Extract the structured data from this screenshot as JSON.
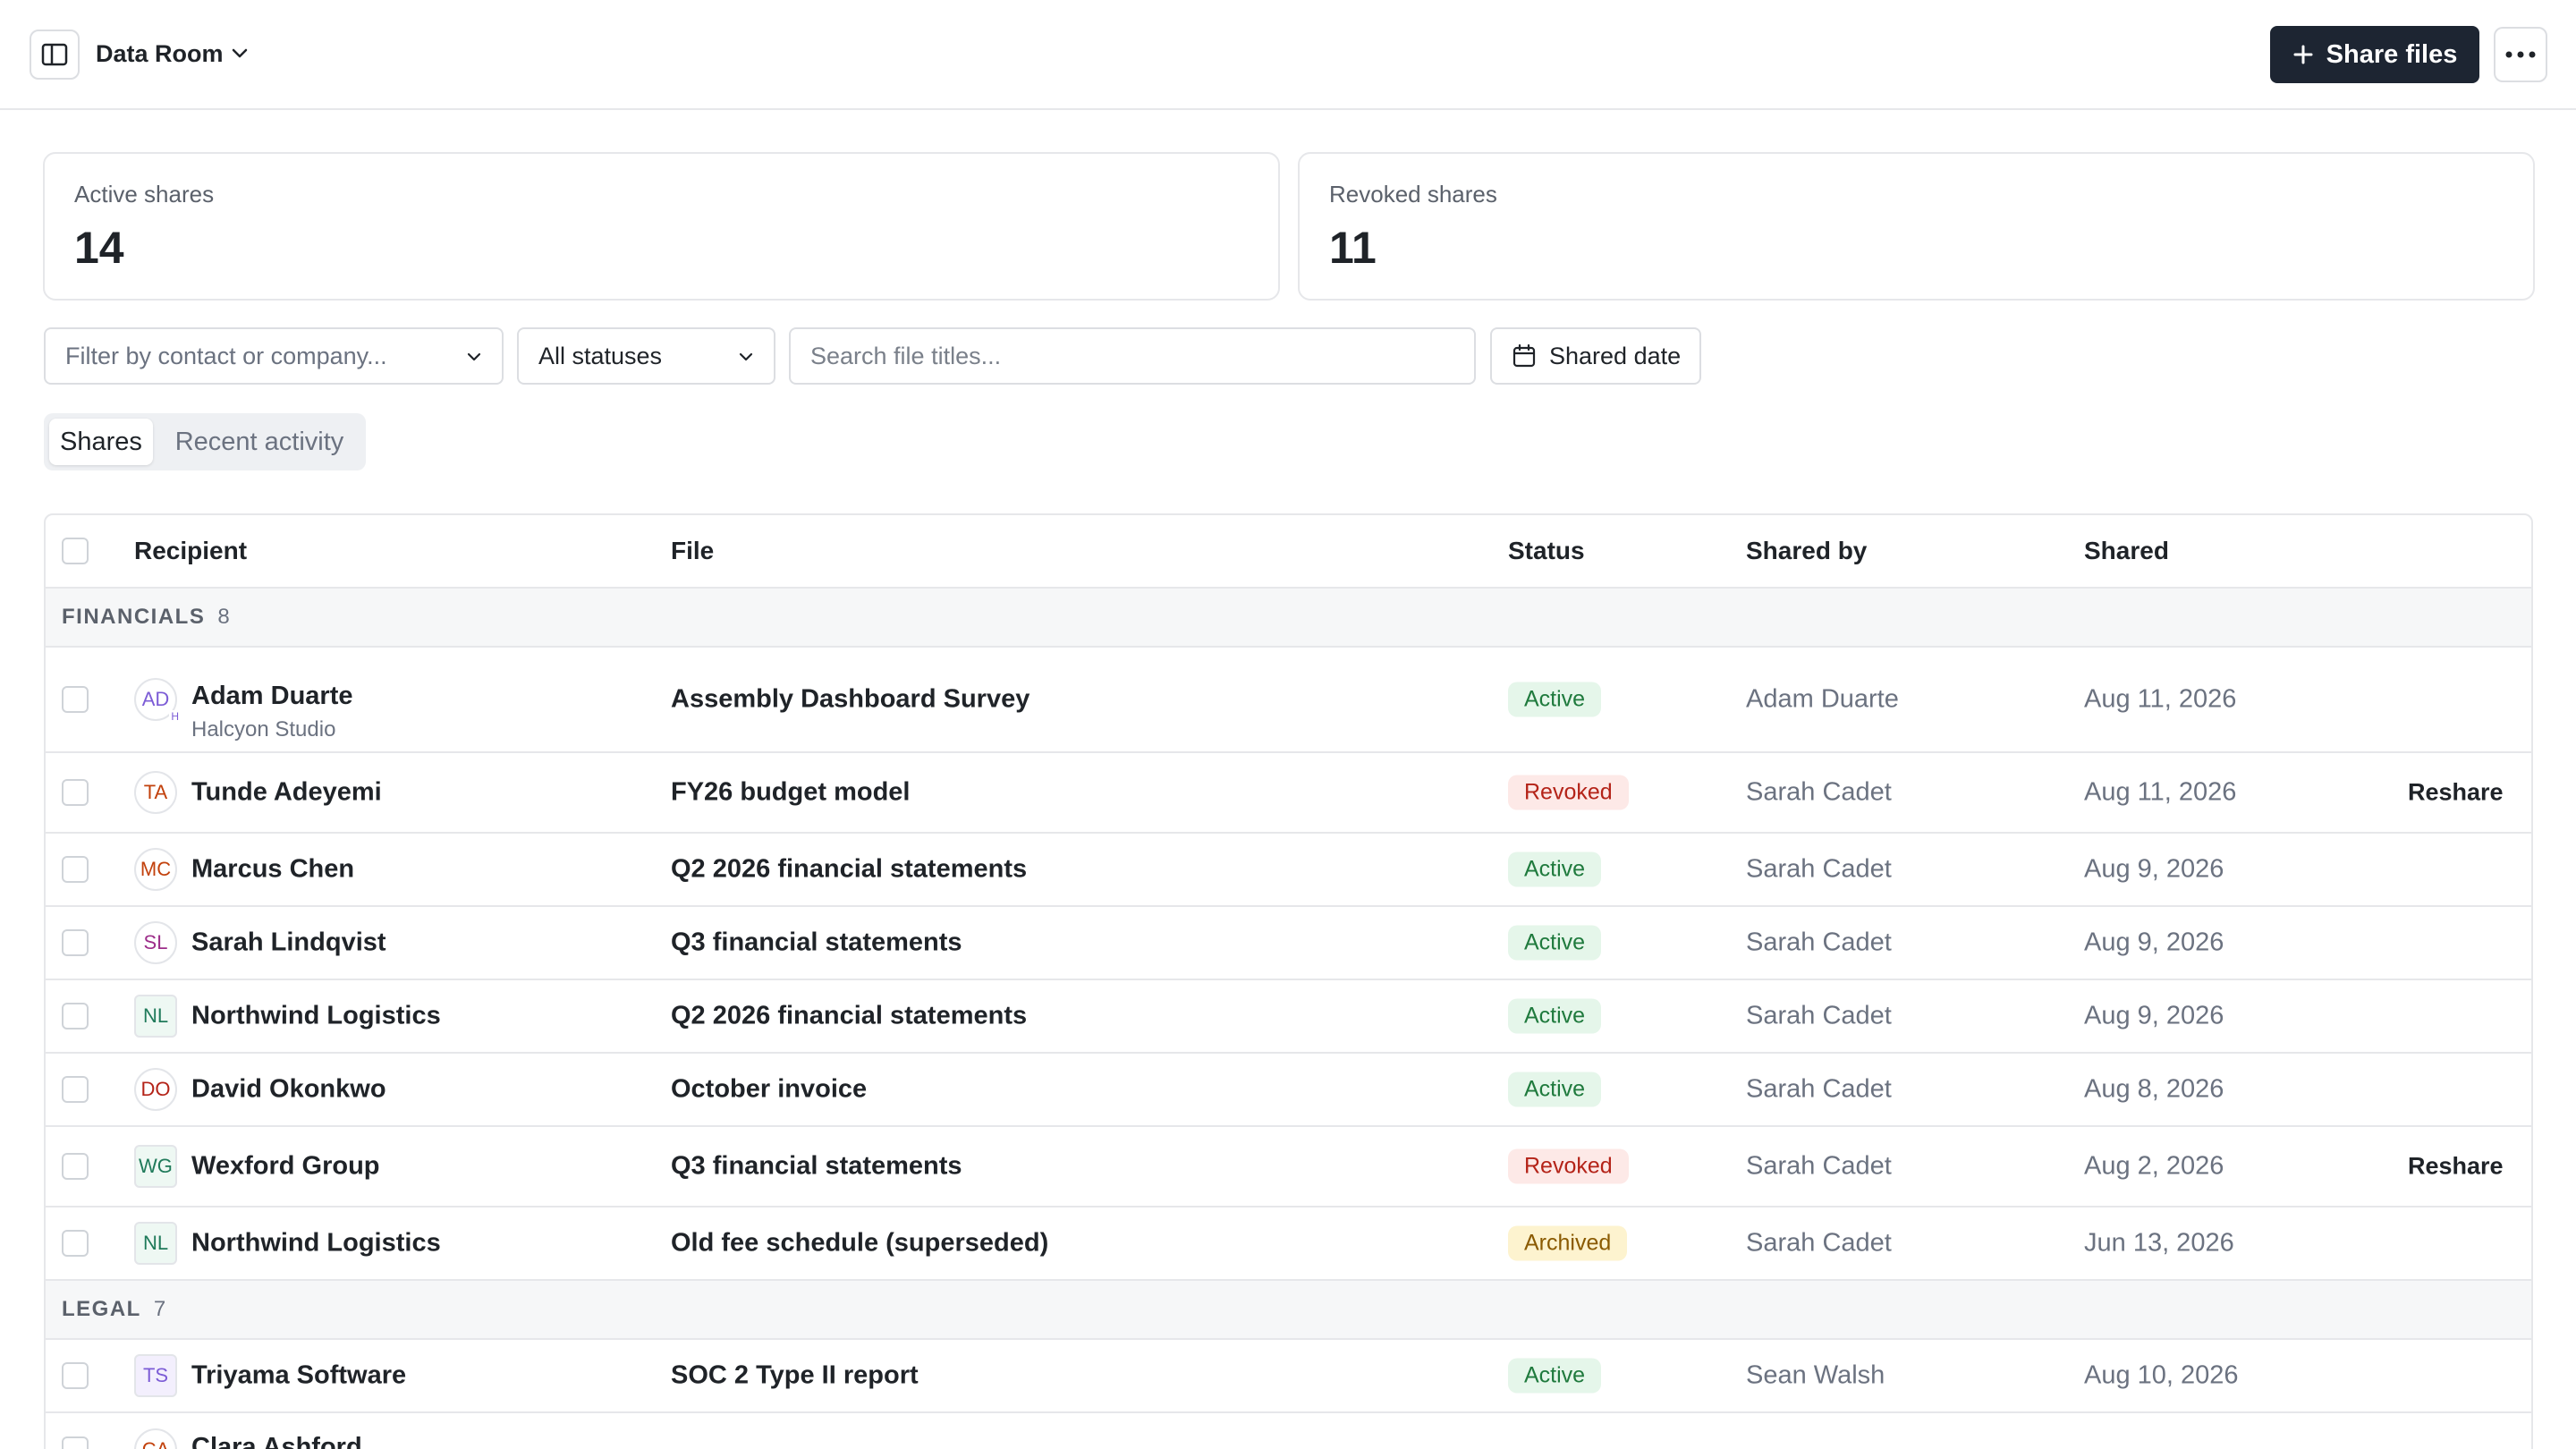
{
  "header": {
    "title": "Data Room",
    "share_button": "Share files"
  },
  "stats": [
    {
      "label": "Active shares",
      "value": "14"
    },
    {
      "label": "Revoked shares",
      "value": "11"
    }
  ],
  "filters": {
    "contact_placeholder": "Filter by contact or company...",
    "status_value": "All statuses",
    "search_placeholder": "Search file titles...",
    "date_label": "Shared date"
  },
  "tabs": [
    {
      "label": "Shares",
      "active": true
    },
    {
      "label": "Recent activity",
      "active": false
    }
  ],
  "table": {
    "columns": [
      "Recipient",
      "File",
      "Status",
      "Shared by",
      "Shared"
    ],
    "groups": [
      {
        "label": "FINANCIALS",
        "count": "8"
      },
      {
        "label": "LEGAL",
        "count": "7"
      }
    ],
    "rows": [
      {
        "initials": "AD",
        "badge": "H",
        "name": "Adam Duarte",
        "company": "Halcyon Studio",
        "file": "Assembly Dashboard Survey",
        "status": "Active",
        "by": "Adam Duarte",
        "date": "Aug 11, 2026",
        "action": ""
      },
      {
        "initials": "TA",
        "name": "Tunde Adeyemi",
        "file": "FY26 budget model",
        "status": "Revoked",
        "by": "Sarah Cadet",
        "date": "Aug 11, 2026",
        "action": "Reshare"
      },
      {
        "initials": "MC",
        "name": "Marcus Chen",
        "file": "Q2 2026 financial statements",
        "status": "Active",
        "by": "Sarah Cadet",
        "date": "Aug 9, 2026",
        "action": ""
      },
      {
        "initials": "SL",
        "name": "Sarah Lindqvist",
        "file": "Q3 financial statements",
        "status": "Active",
        "by": "Sarah Cadet",
        "date": "Aug 9, 2026",
        "action": ""
      },
      {
        "initials": "NL",
        "name": "Northwind Logistics",
        "file": "Q2 2026 financial statements",
        "status": "Active",
        "by": "Sarah Cadet",
        "date": "Aug 9, 2026",
        "action": ""
      },
      {
        "initials": "DO",
        "name": "David Okonkwo",
        "file": "October invoice",
        "status": "Active",
        "by": "Sarah Cadet",
        "date": "Aug 8, 2026",
        "action": ""
      },
      {
        "initials": "WG",
        "name": "Wexford Group",
        "file": "Q3 financial statements",
        "status": "Revoked",
        "by": "Sarah Cadet",
        "date": "Aug 2, 2026",
        "action": "Reshare"
      },
      {
        "initials": "NL",
        "name": "Northwind Logistics",
        "file": "Old fee schedule (superseded)",
        "status": "Archived",
        "by": "Sarah Cadet",
        "date": "Jun 13, 2026",
        "action": ""
      },
      {
        "initials": "TS",
        "name": "Triyama Software",
        "file": "SOC 2 Type II report",
        "status": "Active",
        "by": "Sean Walsh",
        "date": "Aug 10, 2026",
        "action": ""
      },
      {
        "initials": "CA",
        "name": "Clara Ashford",
        "file": "",
        "status": "",
        "by": "",
        "date": "",
        "action": ""
      }
    ]
  },
  "colors": {
    "primary_button": "#1d2532",
    "active_badge_bg": "#e5f6ea",
    "revoked_badge_bg": "#fde9e7",
    "archived_badge_bg": "#fdf3cf"
  }
}
